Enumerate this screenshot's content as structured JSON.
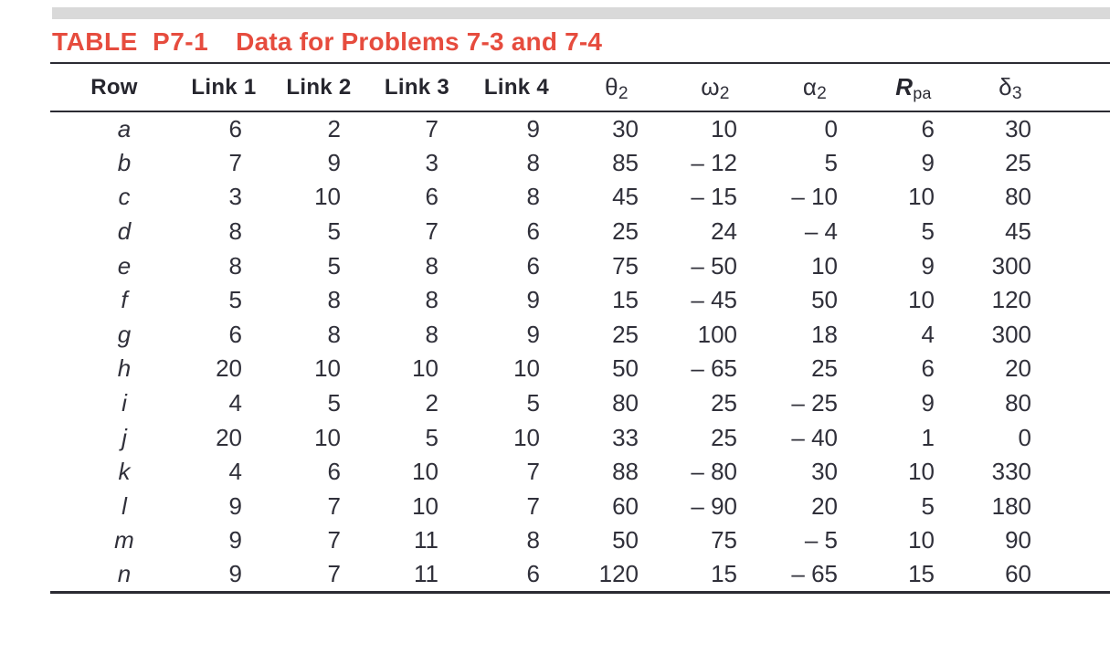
{
  "title": {
    "label": "TABLE P7-1",
    "caption": "Data for Problems 7-3 and 7-4"
  },
  "accent_color": "#e64c3e",
  "bar_color": "#d9d9d9",
  "rule_color": "#2b2b33",
  "table": {
    "columns": [
      {
        "base": "Row",
        "sub": "",
        "kind": "text-bold"
      },
      {
        "base": "Link 1",
        "sub": "",
        "kind": "text-bold"
      },
      {
        "base": "Link 2",
        "sub": "",
        "kind": "text-bold"
      },
      {
        "base": "Link 3",
        "sub": "",
        "kind": "text-bold"
      },
      {
        "base": "Link 4",
        "sub": "",
        "kind": "text-bold"
      },
      {
        "base": "θ",
        "sub": "2",
        "kind": "greek"
      },
      {
        "base": "ω",
        "sub": "2",
        "kind": "greek"
      },
      {
        "base": "α",
        "sub": "2",
        "kind": "greek"
      },
      {
        "base": "R",
        "sub": "pa",
        "kind": "bold-italic"
      },
      {
        "base": "δ",
        "sub": "3",
        "kind": "greek"
      }
    ],
    "rows": [
      {
        "label": "a",
        "values": [
          "6",
          "2",
          "7",
          "9",
          "30",
          "10",
          "0",
          "6",
          "30"
        ]
      },
      {
        "label": "b",
        "values": [
          "7",
          "9",
          "3",
          "8",
          "85",
          "– 12",
          "5",
          "9",
          "25"
        ]
      },
      {
        "label": "c",
        "values": [
          "3",
          "10",
          "6",
          "8",
          "45",
          "– 15",
          "– 10",
          "10",
          "80"
        ]
      },
      {
        "label": "d",
        "values": [
          "8",
          "5",
          "7",
          "6",
          "25",
          "24",
          "– 4",
          "5",
          "45"
        ]
      },
      {
        "label": "e",
        "values": [
          "8",
          "5",
          "8",
          "6",
          "75",
          "– 50",
          "10",
          "9",
          "300"
        ]
      },
      {
        "label": "f",
        "values": [
          "5",
          "8",
          "8",
          "9",
          "15",
          "– 45",
          "50",
          "10",
          "120"
        ]
      },
      {
        "label": "g",
        "values": [
          "6",
          "8",
          "8",
          "9",
          "25",
          "100",
          "18",
          "4",
          "300"
        ]
      },
      {
        "label": "h",
        "values": [
          "20",
          "10",
          "10",
          "10",
          "50",
          "– 65",
          "25",
          "6",
          "20"
        ]
      },
      {
        "label": "i",
        "values": [
          "4",
          "5",
          "2",
          "5",
          "80",
          "25",
          "– 25",
          "9",
          "80"
        ]
      },
      {
        "label": "j",
        "values": [
          "20",
          "10",
          "5",
          "10",
          "33",
          "25",
          "– 40",
          "1",
          "0"
        ]
      },
      {
        "label": "k",
        "values": [
          "4",
          "6",
          "10",
          "7",
          "88",
          "– 80",
          "30",
          "10",
          "330"
        ]
      },
      {
        "label": "l",
        "values": [
          "9",
          "7",
          "10",
          "7",
          "60",
          "– 90",
          "20",
          "5",
          "180"
        ]
      },
      {
        "label": "m",
        "values": [
          "9",
          "7",
          "11",
          "8",
          "50",
          "75",
          "– 5",
          "10",
          "90"
        ]
      },
      {
        "label": "n",
        "values": [
          "9",
          "7",
          "11",
          "6",
          "120",
          "15",
          "– 65",
          "15",
          "60"
        ]
      }
    ]
  }
}
